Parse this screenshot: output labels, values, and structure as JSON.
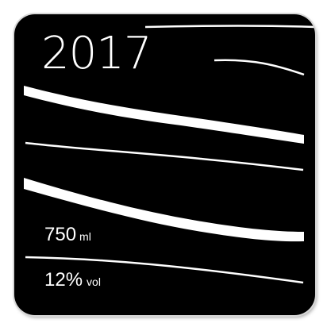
{
  "label": {
    "year": "2017",
    "volume_value": "750",
    "volume_unit": "ml",
    "abv_value": "12%",
    "abv_unit": "vol"
  },
  "colors": {
    "background": "#000000",
    "foreground": "#ffffff"
  }
}
